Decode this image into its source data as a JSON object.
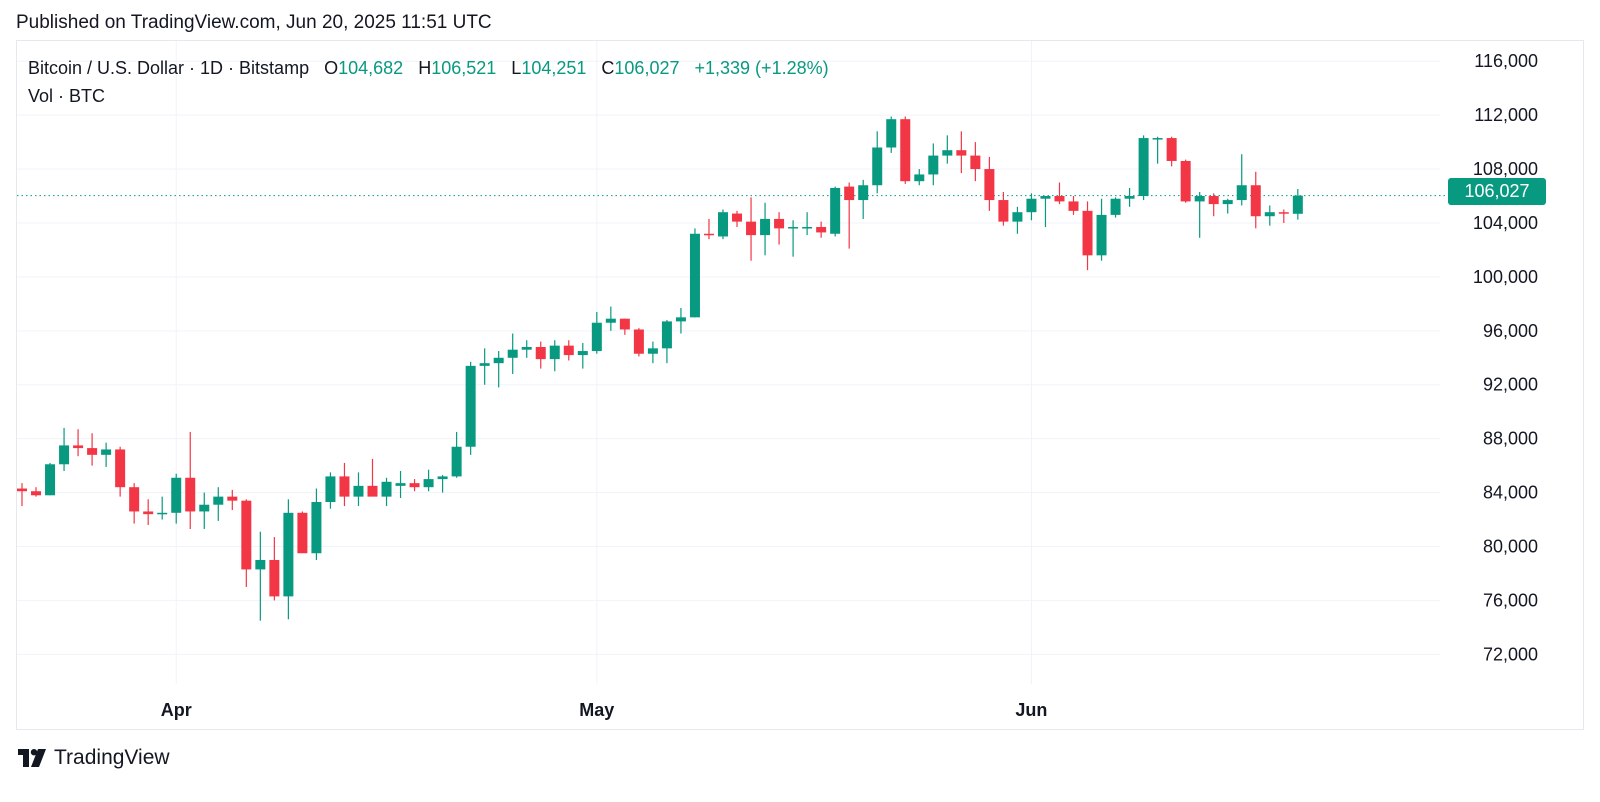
{
  "published": "Published on TradingView.com, Jun 20, 2025 11:51 UTC",
  "legend": {
    "symbol": "Bitcoin / U.S. Dollar · 1D · Bitstamp",
    "open_label": "O",
    "open": "104,682",
    "high_label": "H",
    "high": "106,521",
    "low_label": "L",
    "low": "104,251",
    "close_label": "C",
    "close": "106,027",
    "change": "+1,339 (+1.28%)",
    "volume_label": "Vol · BTC"
  },
  "last_price_label": "106,027",
  "brand": "TradingView",
  "colors": {
    "up": "#089981",
    "down": "#f23645",
    "grid": "#f0f3fa",
    "last_line": "#089981"
  },
  "chart_data": {
    "type": "candlestick",
    "y_ticks": [
      "72,000",
      "76,000",
      "80,000",
      "84,000",
      "88,000",
      "92,000",
      "96,000",
      "100,000",
      "104,000",
      "108,000",
      "112,000",
      "116,000"
    ],
    "x_ticks": [
      {
        "label": "Apr",
        "index": 11
      },
      {
        "label": "May",
        "index": 41
      },
      {
        "label": "Jun",
        "index": 72
      }
    ],
    "ylim": [
      69800,
      117500
    ],
    "last_close": 106027,
    "candles": [
      [
        84300,
        84700,
        83000,
        84100
      ],
      [
        84100,
        84400,
        83700,
        83800
      ],
      [
        83800,
        86200,
        83800,
        86100
      ],
      [
        86100,
        88800,
        85600,
        87500
      ],
      [
        87500,
        88700,
        86700,
        87300
      ],
      [
        87300,
        88400,
        86000,
        86800
      ],
      [
        86800,
        87700,
        85900,
        87200
      ],
      [
        87200,
        87400,
        83700,
        84400
      ],
      [
        84400,
        84700,
        81700,
        82600
      ],
      [
        82600,
        83500,
        81600,
        82400
      ],
      [
        82400,
        83700,
        82000,
        82500
      ],
      [
        82500,
        85400,
        81700,
        85100
      ],
      [
        85100,
        88500,
        81300,
        82600
      ],
      [
        82600,
        84000,
        81300,
        83100
      ],
      [
        83100,
        84400,
        81900,
        83700
      ],
      [
        83700,
        84200,
        82700,
        83400
      ],
      [
        83400,
        83500,
        77000,
        78300
      ],
      [
        78300,
        81100,
        74500,
        79000
      ],
      [
        79000,
        80700,
        76000,
        76300
      ],
      [
        76300,
        83500,
        74600,
        82500
      ],
      [
        82500,
        82600,
        79600,
        79500
      ],
      [
        79500,
        84300,
        79000,
        83300
      ],
      [
        83300,
        85500,
        82800,
        85200
      ],
      [
        85200,
        86200,
        83000,
        83700
      ],
      [
        83700,
        85500,
        83000,
        84500
      ],
      [
        84500,
        86500,
        83800,
        83700
      ],
      [
        83700,
        85100,
        83000,
        84800
      ],
      [
        84500,
        85600,
        83600,
        84700
      ],
      [
        84700,
        85000,
        84100,
        84400
      ],
      [
        84400,
        85700,
        84100,
        85000
      ],
      [
        85000,
        85300,
        84000,
        85200
      ],
      [
        85200,
        88500,
        85100,
        87400
      ],
      [
        87400,
        93700,
        86800,
        93400
      ],
      [
        93400,
        94700,
        92000,
        93600
      ],
      [
        93600,
        94500,
        91800,
        94000
      ],
      [
        94000,
        95800,
        92800,
        94600
      ],
      [
        94600,
        95300,
        94000,
        94800
      ],
      [
        94800,
        95200,
        93200,
        93900
      ],
      [
        93900,
        95300,
        93000,
        94900
      ],
      [
        94900,
        95300,
        93800,
        94200
      ],
      [
        94200,
        95100,
        93200,
        94500
      ],
      [
        94500,
        97400,
        94300,
        96600
      ],
      [
        96600,
        97800,
        96000,
        96900
      ],
      [
        96900,
        96900,
        95700,
        96100
      ],
      [
        96100,
        96200,
        94100,
        94300
      ],
      [
        94300,
        95200,
        93600,
        94700
      ],
      [
        94700,
        96800,
        93600,
        96700
      ],
      [
        96700,
        97700,
        95800,
        97000
      ],
      [
        97000,
        103600,
        97000,
        103200
      ],
      [
        103200,
        104300,
        102800,
        103100
      ],
      [
        103000,
        105000,
        102800,
        104800
      ],
      [
        104700,
        104900,
        103700,
        104100
      ],
      [
        104100,
        105900,
        101200,
        103100
      ],
      [
        103100,
        105500,
        101600,
        104300
      ],
      [
        104300,
        104800,
        102400,
        103600
      ],
      [
        103600,
        104200,
        101500,
        103700
      ],
      [
        103700,
        104800,
        103100,
        103700
      ],
      [
        103700,
        104100,
        102900,
        103300
      ],
      [
        103200,
        106700,
        103000,
        106600
      ],
      [
        106700,
        107000,
        102100,
        105700
      ],
      [
        105700,
        107200,
        104300,
        106800
      ],
      [
        106800,
        110800,
        106200,
        109600
      ],
      [
        109600,
        111900,
        109200,
        111700
      ],
      [
        111700,
        111900,
        106900,
        107100
      ],
      [
        107100,
        108000,
        106800,
        107600
      ],
      [
        107600,
        109900,
        106800,
        109000
      ],
      [
        109000,
        110500,
        108400,
        109400
      ],
      [
        109400,
        110800,
        107700,
        109000
      ],
      [
        109000,
        110000,
        107100,
        108000
      ],
      [
        108000,
        108900,
        104900,
        105700
      ],
      [
        105700,
        106300,
        103800,
        104100
      ],
      [
        104100,
        105200,
        103200,
        104800
      ],
      [
        104800,
        106200,
        104200,
        105800
      ],
      [
        105800,
        106000,
        103700,
        106000
      ],
      [
        106000,
        107000,
        105400,
        105600
      ],
      [
        105600,
        106000,
        104600,
        104900
      ],
      [
        104900,
        105600,
        100500,
        101600
      ],
      [
        101600,
        105800,
        101200,
        104600
      ],
      [
        104600,
        105900,
        104400,
        105800
      ],
      [
        105800,
        106600,
        105200,
        106000
      ],
      [
        106000,
        110500,
        105700,
        110300
      ],
      [
        110300,
        110400,
        108400,
        110300
      ],
      [
        110300,
        110400,
        108200,
        108600
      ],
      [
        108600,
        108700,
        105500,
        105600
      ],
      [
        105600,
        106300,
        102900,
        106000
      ],
      [
        106000,
        106200,
        104500,
        105400
      ],
      [
        105400,
        105800,
        104700,
        105700
      ],
      [
        105700,
        109100,
        105300,
        106800
      ],
      [
        106800,
        107800,
        103600,
        104500
      ],
      [
        104500,
        105300,
        103800,
        104800
      ],
      [
        104800,
        105000,
        104000,
        104700
      ],
      [
        104682,
        106521,
        104251,
        106027
      ]
    ]
  }
}
